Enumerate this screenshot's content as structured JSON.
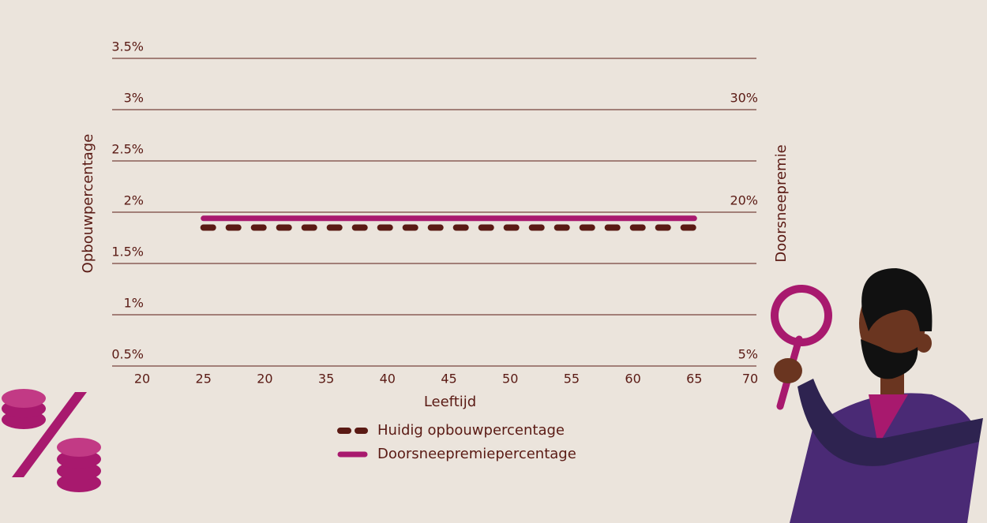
{
  "chart_data": {
    "type": "line",
    "ylabel": "Opbouwpercentage",
    "y2label": "Doorsneepremie",
    "xlabel": "Leeftijd",
    "categories": [
      "20",
      "25",
      "20",
      "35",
      "40",
      "45",
      "50",
      "55",
      "60",
      "65",
      "70"
    ],
    "series": [
      {
        "name": "Huidig opbouwpercentage",
        "color": "#5a1a14",
        "dashed": true,
        "values": [
          null,
          1.85,
          1.85,
          1.85,
          1.85,
          1.85,
          1.85,
          1.85,
          1.85,
          1.85,
          null
        ]
      },
      {
        "name": "Doorsneepremiepercentage",
        "color": "#a8196e",
        "dashed": false,
        "values": [
          null,
          1.94,
          1.94,
          1.94,
          1.94,
          1.94,
          1.94,
          1.94,
          1.94,
          1.94,
          null
        ]
      }
    ],
    "ylim": [
      0.5,
      3.5
    ],
    "yticks": [
      {
        "value": 0.5,
        "label": "0.5%"
      },
      {
        "value": 1,
        "label": "1%"
      },
      {
        "value": 1.5,
        "label": "1.5%"
      },
      {
        "value": 2,
        "label": "2%"
      },
      {
        "value": 2.5,
        "label": "2.5%"
      },
      {
        "value": 3,
        "label": "3%"
      },
      {
        "value": 3.5,
        "label": "3.5%"
      }
    ],
    "y2lim": [
      5,
      35
    ],
    "y2ticks": [
      {
        "value": 5,
        "label": "5%"
      },
      {
        "value": 20,
        "label": "20%"
      },
      {
        "value": 30,
        "label": "30%"
      }
    ],
    "grid": true
  }
}
